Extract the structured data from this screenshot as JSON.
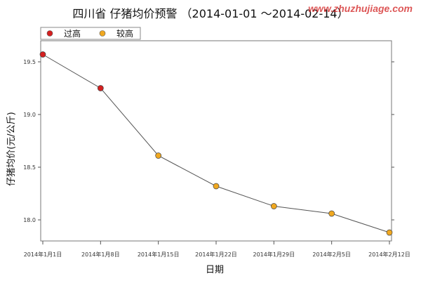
{
  "chart_data": {
    "type": "line",
    "title": "四川省 仔猪均价预警 （2014-01-01 ～2014-02-14）",
    "xlabel": "日期",
    "ylabel": "仔猪均价(元/公斤)",
    "x": [
      "2014年1月1日",
      "2014年1月8日",
      "2014年1月15日",
      "2014年1月22日",
      "2014年1月29日",
      "2014年2月5日",
      "2014年2月12日"
    ],
    "series": [
      {
        "values": [
          19.57,
          19.25,
          18.61,
          18.32,
          18.13,
          18.06,
          17.88
        ],
        "levels": [
          "过高",
          "过高",
          "较高",
          "较高",
          "较高",
          "较高",
          "较高"
        ]
      }
    ],
    "ylim": [
      17.8,
      19.7
    ],
    "yticks": [
      18.0,
      18.5,
      19.0,
      19.5
    ],
    "ytick_labels": [
      "18.0",
      "18.5",
      "19.0",
      "19.5"
    ],
    "legend": {
      "placement": "top-left",
      "entries": [
        {
          "label": "过高",
          "color": "#d42020"
        },
        {
          "label": "较高",
          "color": "#f0a820"
        }
      ]
    },
    "line_color": "#555555",
    "grid": false
  },
  "watermark": "www.zhuzhujiage.com"
}
